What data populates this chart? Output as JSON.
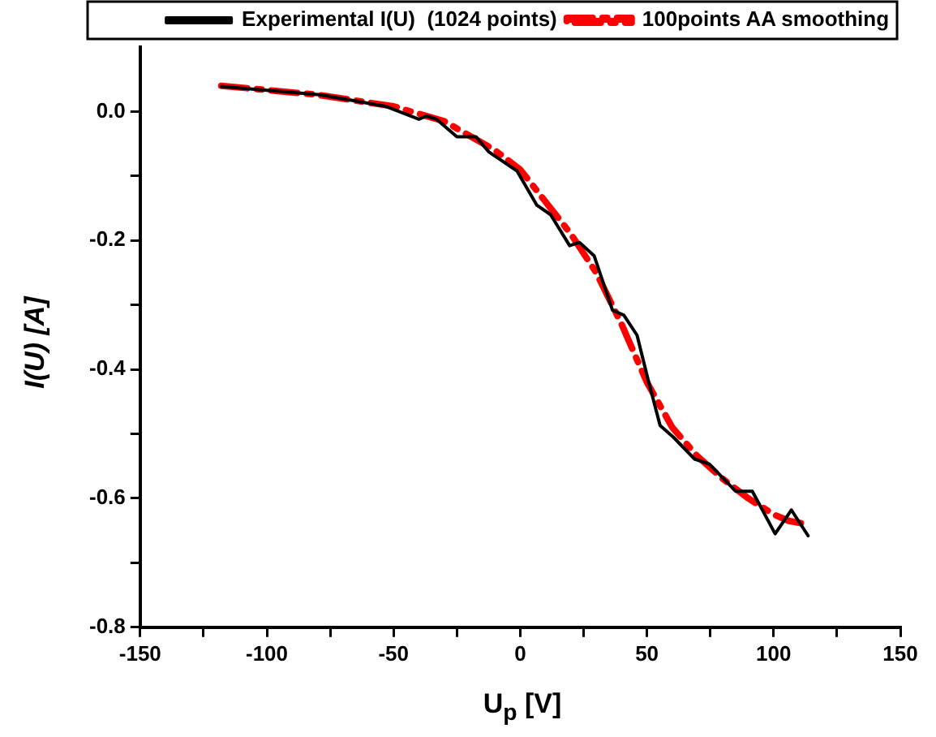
{
  "chart_data": {
    "type": "line",
    "xlabel": "U$_{p}$  [V]",
    "ylabel": "I(U)  [A]",
    "xlim": [
      -150,
      150
    ],
    "xticks": [
      -150,
      {
        "value": -125,
        "label": null
      },
      -100,
      {
        "value": -75,
        "label": null
      },
      -50,
      {
        "value": -25,
        "label": null
      },
      0,
      {
        "value": 25,
        "label": null
      },
      50,
      {
        "value": 75,
        "label": null
      },
      100,
      {
        "value": 125,
        "label": null
      },
      150
    ],
    "ylim": [
      -0.8,
      0.1
    ],
    "yticks": [
      {
        "value": -0.8,
        "label": "-0.8"
      },
      {
        "value": -0.7,
        "label": null
      },
      {
        "value": -0.6,
        "label": "-0.6"
      },
      {
        "value": -0.5,
        "label": null
      },
      {
        "value": -0.4,
        "label": "-0.4"
      },
      {
        "value": -0.3,
        "label": null
      },
      {
        "value": -0.2,
        "label": "-0.2"
      },
      {
        "value": -0.1,
        "label": null
      },
      {
        "value": 0,
        "label": "0.0"
      }
    ],
    "grid": false,
    "legend": "top right",
    "marker": "none",
    "series": [
      {
        "name": "Experimental I(U)  (1024 points)",
        "color": "#000000",
        "line_style": "solid",
        "x": [
          -118,
          -100,
          -79,
          -53,
          -40,
          -37,
          -33,
          -25,
          -17.5,
          -12.3,
          -1.3,
          6.5,
          12,
          19.5,
          23.4,
          29.2,
          36.4,
          40.9,
          46.1,
          50.6,
          55.2,
          60.4,
          68.8,
          74.7,
          85,
          91.6,
          100.6,
          107,
          113.6
        ],
        "values": [
          0.039,
          0.033,
          0.026,
          0.008,
          -0.012,
          -0.007,
          -0.012,
          -0.039,
          -0.039,
          -0.063,
          -0.092,
          -0.145,
          -0.16,
          -0.208,
          -0.203,
          -0.224,
          -0.308,
          -0.316,
          -0.347,
          -0.418,
          -0.487,
          -0.505,
          -0.539,
          -0.547,
          -0.589,
          -0.589,
          -0.655,
          -0.618,
          -0.658
        ]
      },
      {
        "name": "100points AA smoothing",
        "color": "#ff0000",
        "line_style": "dashdot",
        "x": [
          -118,
          -80,
          -50,
          -30,
          -10,
          0,
          10,
          20,
          30,
          40,
          50,
          60,
          70,
          80,
          90,
          100,
          106,
          113
        ],
        "values": [
          0.04,
          0.026,
          0.008,
          -0.015,
          -0.06,
          -0.09,
          -0.14,
          -0.19,
          -0.25,
          -0.33,
          -0.42,
          -0.49,
          -0.535,
          -0.57,
          -0.6,
          -0.625,
          -0.635,
          -0.64
        ]
      }
    ]
  }
}
